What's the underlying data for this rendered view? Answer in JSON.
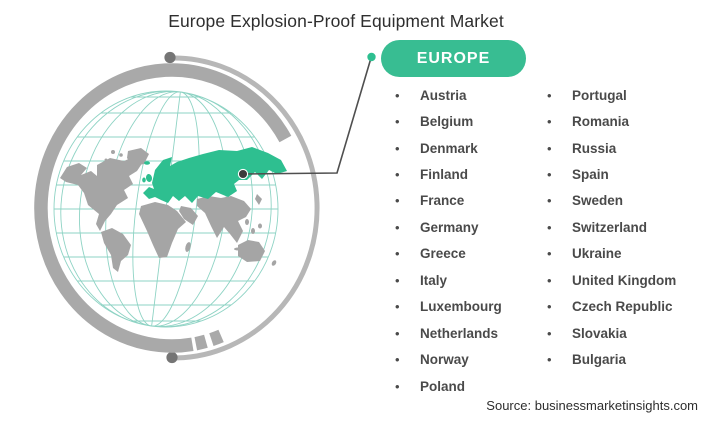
{
  "title": "Europe Explosion-Proof Equipment Market",
  "badge": {
    "label": "EUROPE"
  },
  "list_bullet": "•",
  "countries": {
    "column1": [
      "Austria",
      "Belgium",
      "Denmark",
      "Finland",
      "France",
      "Germany",
      "Greece",
      "Italy",
      "Luxembourg",
      "Netherlands",
      "Norway",
      "Poland"
    ],
    "column2": [
      "Portugal",
      "Romania",
      "Russia",
      "Spain",
      "Sweden",
      "Switzerland",
      "Ukraine",
      "United Kingdom",
      "Czech Republic",
      "Slovakia",
      "Bulgaria"
    ]
  },
  "source": "Source: businessmarketinsights.com",
  "colors": {
    "accent_green": "#2ebf90",
    "badge_green": "#38bd92",
    "map_gray": "#a5a5a5",
    "ring_gray": "#a9a9a9",
    "thin_ring_gray": "#b7b7b7",
    "ring_dot_gray": "#757575",
    "graticule_teal": "#8ed3c4",
    "connector_gray": "#4f4f4f",
    "marker_dark": "#3c3c3c",
    "title_color": "#2e2e2e",
    "list_text_color": "#4a4a4a",
    "source_color": "#2e2e2e"
  }
}
